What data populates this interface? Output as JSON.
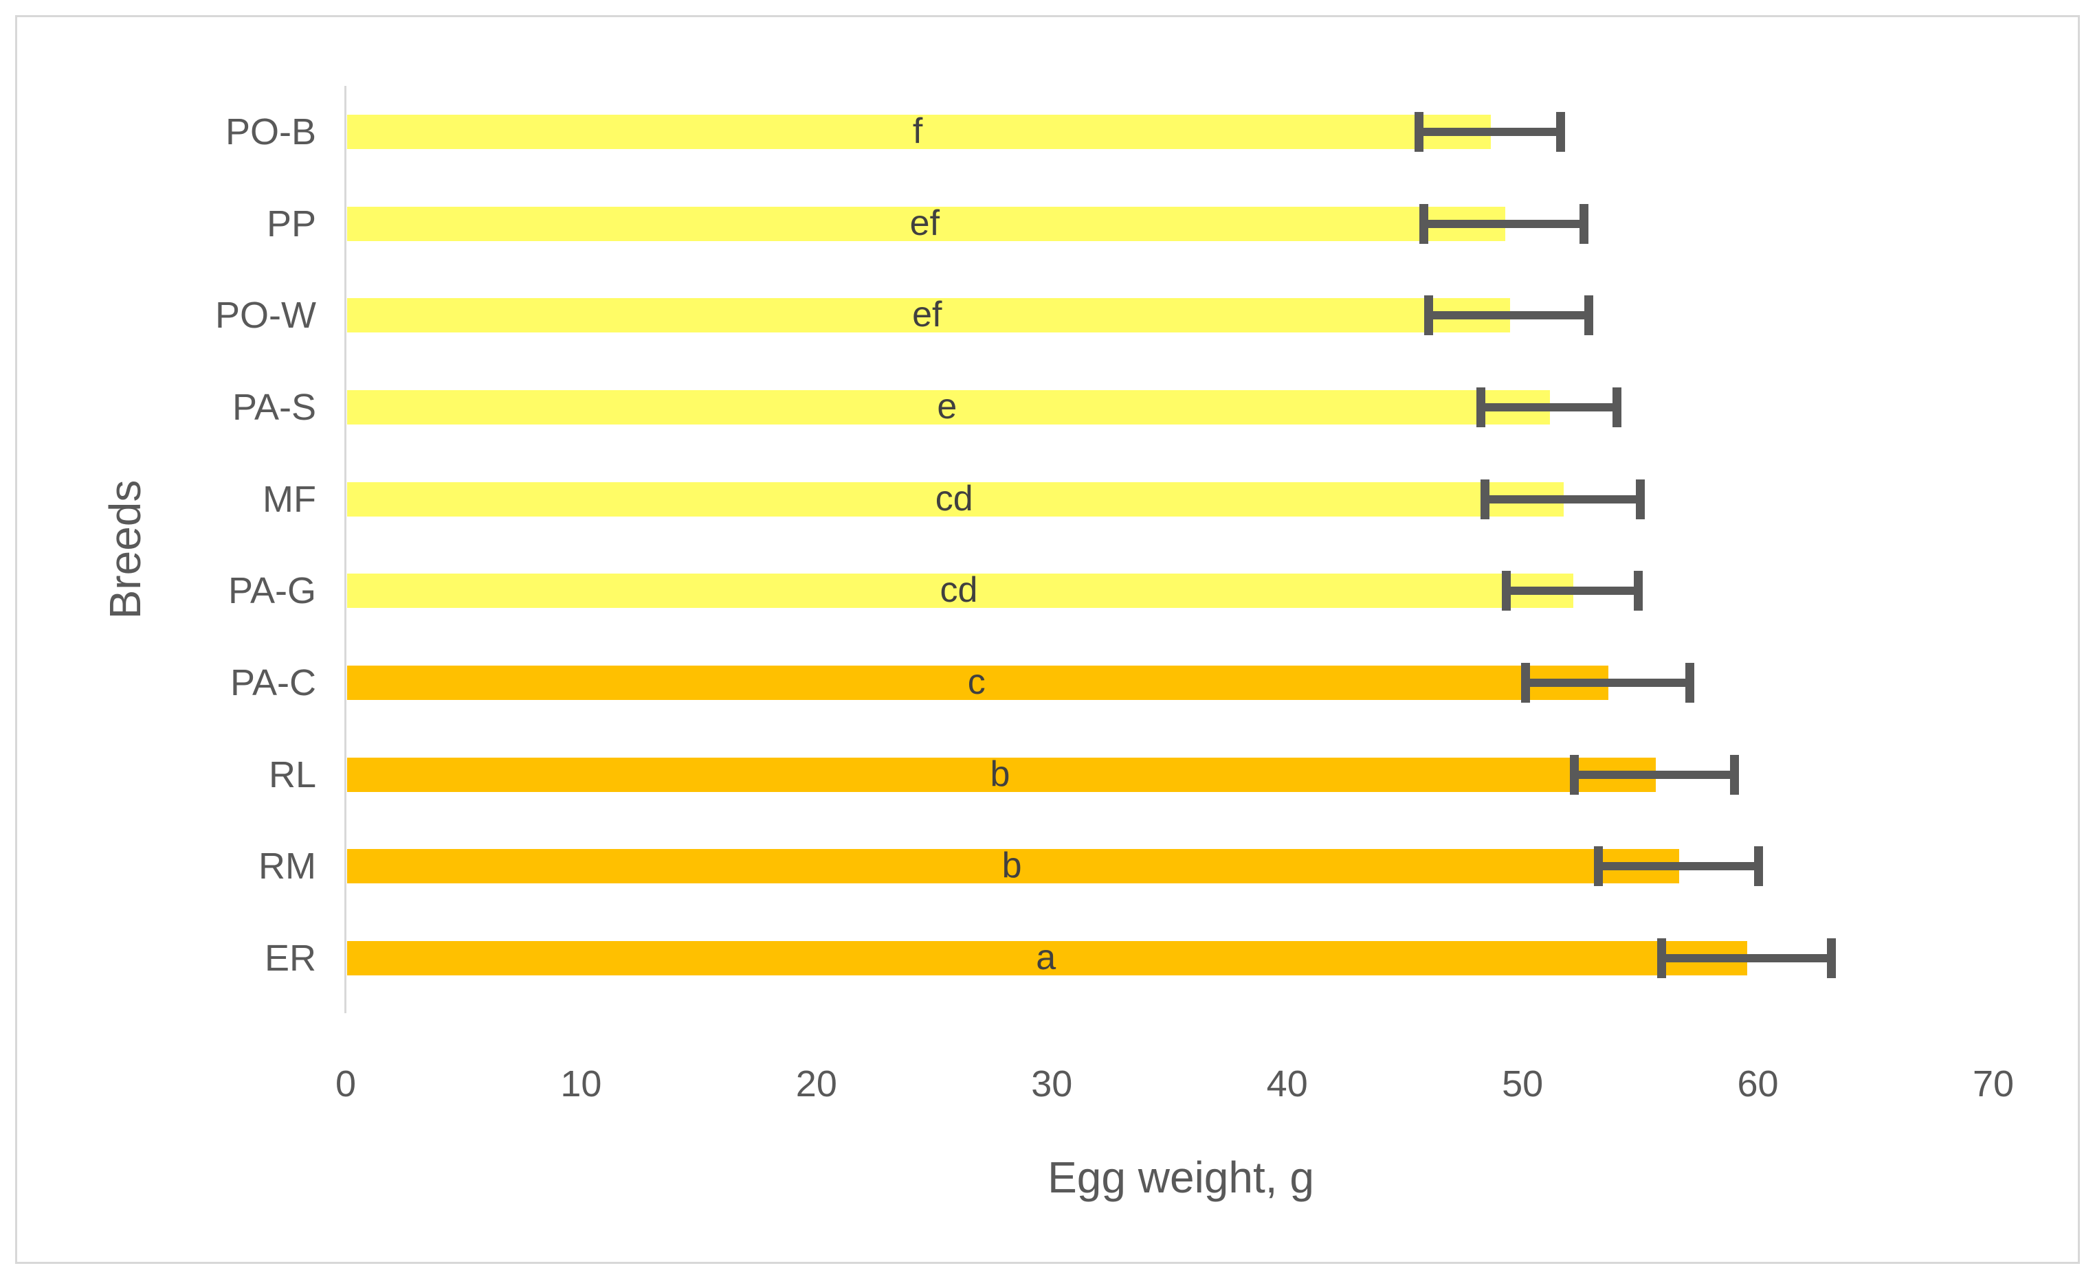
{
  "chart_data": {
    "type": "bar",
    "orientation": "horizontal",
    "title": "",
    "xlabel": "Egg weight, g",
    "ylabel": "Breeds",
    "xlim": [
      0,
      70
    ],
    "xticks": [
      0,
      10,
      20,
      30,
      40,
      50,
      60,
      70
    ],
    "grid": false,
    "legend": "none",
    "categories": [
      "PO-B",
      "PP",
      "PO-W",
      "PA-S",
      "MF",
      "PA-G",
      "PA-C",
      "RL",
      "RM",
      "ER"
    ],
    "values": [
      48.6,
      49.2,
      49.4,
      51.1,
      51.7,
      52.1,
      53.6,
      55.6,
      56.6,
      59.5
    ],
    "error_bars": [
      3.0,
      3.4,
      3.4,
      2.9,
      3.3,
      2.8,
      3.5,
      3.4,
      3.4,
      3.6
    ],
    "bar_labels": [
      "f",
      "ef",
      "ef",
      "e",
      "cd",
      "cd",
      "c",
      "b",
      "b",
      "a"
    ],
    "bar_colors": [
      "#FFFC66",
      "#FFFC66",
      "#FFFC66",
      "#FFFC66",
      "#FFFC66",
      "#FFFC66",
      "#FFC000",
      "#FFC000",
      "#FFC000",
      "#FFC000"
    ]
  },
  "colors": {
    "light_yellow_series": "#FFFC66",
    "gold_series": "#FFC000",
    "error_bar": "#595959",
    "axis_line": "#D9D9D9",
    "axis_text": "#595959",
    "bar_letter_text": "#404040",
    "frame_border": "#D8D8D8",
    "background": "#FFFFFF"
  }
}
